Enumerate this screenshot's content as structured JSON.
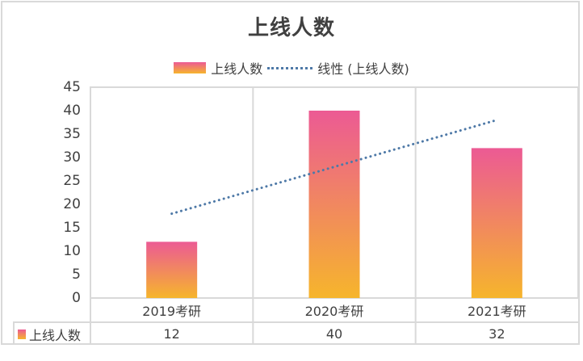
{
  "title": "上线人数",
  "legend": {
    "series_label": "上线人数",
    "trend_label": "线性 (上线人数)"
  },
  "colors": {
    "bar_top": "#ec5a94",
    "bar_bottom": "#f6b52c",
    "trend": "#4e79a7",
    "grid": "#d9d9d9",
    "text": "#404040"
  },
  "yaxis": {
    "ticks": [
      "0",
      "5",
      "10",
      "15",
      "20",
      "25",
      "30",
      "35",
      "40",
      "45"
    ]
  },
  "table": {
    "row_label": "上线人数",
    "categories": [
      "2019考研",
      "2020考研",
      "2021考研"
    ],
    "values": [
      "12",
      "40",
      "32"
    ]
  },
  "chart_data": {
    "type": "bar",
    "title": "上线人数",
    "categories": [
      "2019考研",
      "2020考研",
      "2021考研"
    ],
    "series": [
      {
        "name": "上线人数",
        "type": "bar",
        "values": [
          12,
          40,
          32
        ]
      },
      {
        "name": "线性 (上线人数)",
        "type": "line",
        "style": "dotted",
        "values": [
          18,
          28,
          38
        ]
      }
    ],
    "xlabel": "",
    "ylabel": "",
    "ylim": [
      0,
      45
    ],
    "yticks": [
      0,
      5,
      10,
      15,
      20,
      25,
      30,
      35,
      40,
      45
    ],
    "grid": false,
    "legend_position": "top",
    "data_table": true
  }
}
